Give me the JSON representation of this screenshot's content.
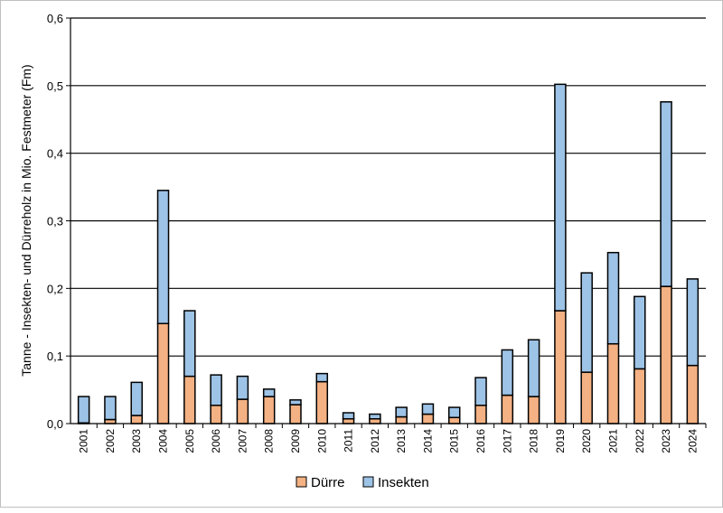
{
  "chart_data": {
    "type": "bar",
    "stacked": true,
    "title": "",
    "xlabel": "",
    "ylabel": "Tanne - Insekten- und Dürreholz in Mio. Festmeter (Fm)",
    "ylim": [
      0,
      0.6
    ],
    "yticks": [
      "0,0",
      "0,1",
      "0,2",
      "0,3",
      "0,4",
      "0,5",
      "0,6"
    ],
    "grid": true,
    "legend_position": "bottom",
    "categories": [
      "2001",
      "2002",
      "2003",
      "2004",
      "2005",
      "2006",
      "2007",
      "2008",
      "2009",
      "2010",
      "2011",
      "2012",
      "2013",
      "2014",
      "2015",
      "2016",
      "2017",
      "2018",
      "2019",
      "2020",
      "2021",
      "2022",
      "2023",
      "2024"
    ],
    "series": [
      {
        "name": "Dürre",
        "color": "#F4B183",
        "values": [
          0.001,
          0.006,
          0.012,
          0.148,
          0.07,
          0.027,
          0.036,
          0.04,
          0.028,
          0.062,
          0.007,
          0.007,
          0.01,
          0.014,
          0.009,
          0.027,
          0.042,
          0.04,
          0.167,
          0.076,
          0.118,
          0.081,
          0.203,
          0.086
        ]
      },
      {
        "name": "Insekten",
        "color": "#9DC3E6",
        "values": [
          0.039,
          0.034,
          0.049,
          0.197,
          0.097,
          0.045,
          0.034,
          0.011,
          0.007,
          0.012,
          0.009,
          0.007,
          0.014,
          0.015,
          0.015,
          0.041,
          0.067,
          0.084,
          0.335,
          0.147,
          0.135,
          0.107,
          0.273,
          0.128
        ]
      }
    ]
  }
}
